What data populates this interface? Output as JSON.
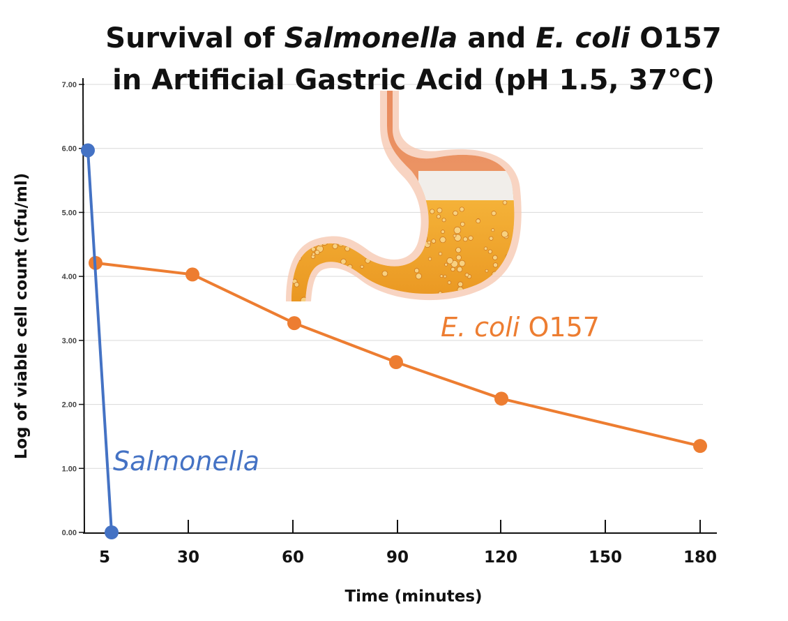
{
  "chart_data": {
    "type": "line",
    "title": {
      "line1": [
        {
          "text": "Survival of ",
          "italic": false
        },
        {
          "text": "Salmonella",
          "italic": true
        },
        {
          "text": " and ",
          "italic": false
        },
        {
          "text": "E. coli",
          "italic": true
        },
        {
          "text": " O157",
          "italic": false
        }
      ],
      "line2": "in Artificial Gastric Acid (pH 1.5, 37°C)"
    },
    "xlabel": "Time (minutes)",
    "ylabel": "Log of viable cell count (cfu/ml)",
    "x_ticks": [
      5,
      30,
      60,
      90,
      120,
      150,
      180
    ],
    "x_tick_labels": [
      "5",
      "30",
      "60",
      "90",
      "120",
      "150",
      "180"
    ],
    "y_ticks": [
      0,
      1,
      2,
      3,
      4,
      5,
      6,
      7
    ],
    "y_tick_labels": [
      "0.00",
      "1.00",
      "2.00",
      "3.00",
      "4.00",
      "5.00",
      "6.00",
      "7.00"
    ],
    "ylim": [
      0,
      7
    ],
    "xlim": [
      0,
      180
    ],
    "grid": true,
    "series": [
      {
        "name": "Salmonella",
        "label_italic": true,
        "color": "#4472C4",
        "x": [
          0,
          5
        ],
        "y": [
          5.97,
          0.0
        ]
      },
      {
        "name": "E. coli O157",
        "label_parts": [
          {
            "text": "E. coli",
            "italic": true
          },
          {
            "text": " O157",
            "italic": false
          }
        ],
        "color": "#ED7D31",
        "x": [
          0,
          30,
          60,
          90,
          120,
          180
        ],
        "y": [
          4.21,
          4.03,
          3.27,
          2.66,
          2.09,
          1.35
        ]
      }
    ],
    "illustration": "stomach-with-gastric-acid"
  }
}
